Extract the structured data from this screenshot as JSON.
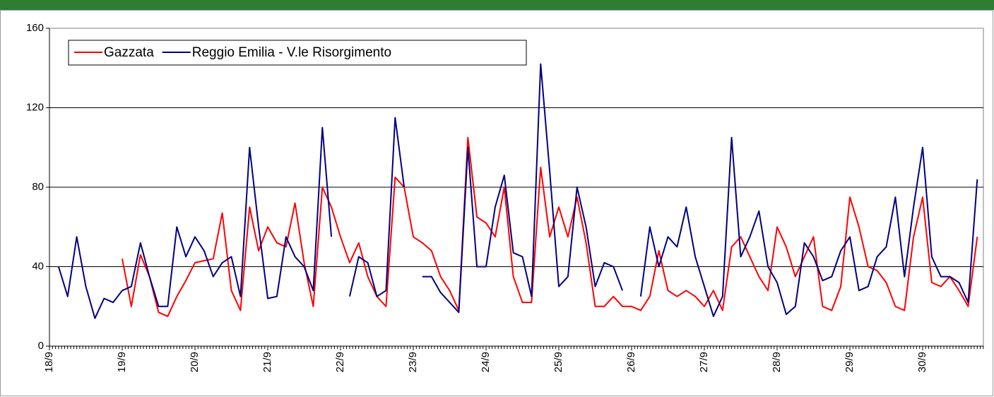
{
  "chart_data": {
    "type": "line",
    "categories": [
      "18/9",
      null,
      null,
      null,
      null,
      null,
      null,
      null,
      "19/9",
      null,
      null,
      null,
      null,
      null,
      null,
      null,
      "20/9",
      null,
      null,
      null,
      null,
      null,
      null,
      null,
      "21/9",
      null,
      null,
      null,
      null,
      null,
      null,
      null,
      "22/9",
      null,
      null,
      null,
      null,
      null,
      null,
      null,
      "23/9",
      null,
      null,
      null,
      null,
      null,
      null,
      null,
      "24/9",
      null,
      null,
      null,
      null,
      null,
      null,
      null,
      "25/9",
      null,
      null,
      null,
      null,
      null,
      null,
      null,
      "26/9",
      null,
      null,
      null,
      null,
      null,
      null,
      null,
      "27/9",
      null,
      null,
      null,
      null,
      null,
      null,
      null,
      "28/9",
      null,
      null,
      null,
      null,
      null,
      null,
      null,
      "29/9",
      null,
      null,
      null,
      null,
      null,
      null,
      null,
      "30/9",
      null,
      null,
      null,
      null,
      null,
      null
    ],
    "series": [
      {
        "name": "Gazzata",
        "color": "#ff0000",
        "values": [
          null,
          null,
          null,
          null,
          null,
          null,
          null,
          null,
          44,
          20,
          46,
          35,
          17,
          15,
          25,
          33,
          42,
          43,
          44,
          67,
          28,
          18,
          70,
          48,
          60,
          52,
          50,
          72,
          42,
          20,
          80,
          70,
          55,
          42,
          52,
          35,
          25,
          20,
          85,
          80,
          55,
          52,
          48,
          35,
          28,
          18,
          105,
          65,
          62,
          55,
          80,
          35,
          22,
          22,
          90,
          55,
          70,
          55,
          75,
          52,
          20,
          20,
          25,
          20,
          20,
          18,
          25,
          48,
          28,
          25,
          28,
          25,
          20,
          28,
          18,
          50,
          55,
          45,
          35,
          28,
          60,
          50,
          35,
          45,
          55,
          20,
          18,
          30,
          75,
          60,
          40,
          38,
          32,
          20,
          18,
          55,
          75,
          32,
          30,
          35,
          28,
          20,
          55
        ]
      },
      {
        "name": "Reggio Emilia - V.le Risorgimento",
        "color": "#000080",
        "values": [
          null,
          40,
          25,
          55,
          30,
          14,
          24,
          22,
          28,
          30,
          52,
          35,
          20,
          20,
          60,
          45,
          55,
          48,
          35,
          42,
          45,
          25,
          100,
          60,
          24,
          25,
          55,
          45,
          40,
          28,
          110,
          55,
          null,
          25,
          45,
          42,
          25,
          28,
          115,
          80,
          null,
          35,
          35,
          27,
          22,
          17,
          100,
          40,
          40,
          70,
          86,
          47,
          45,
          25,
          142,
          88,
          30,
          35,
          80,
          60,
          30,
          42,
          40,
          28,
          null,
          25,
          60,
          40,
          55,
          50,
          70,
          45,
          30,
          15,
          25,
          105,
          45,
          55,
          68,
          40,
          32,
          16,
          20,
          52,
          45,
          33,
          35,
          48,
          55,
          28,
          30,
          45,
          50,
          75,
          35,
          70,
          100,
          45,
          35,
          35,
          32,
          22,
          84
        ]
      }
    ],
    "ylim": [
      0,
      160
    ],
    "yticks": [
      0,
      40,
      80,
      120,
      160
    ],
    "grid": true,
    "legend": "upper-left"
  }
}
